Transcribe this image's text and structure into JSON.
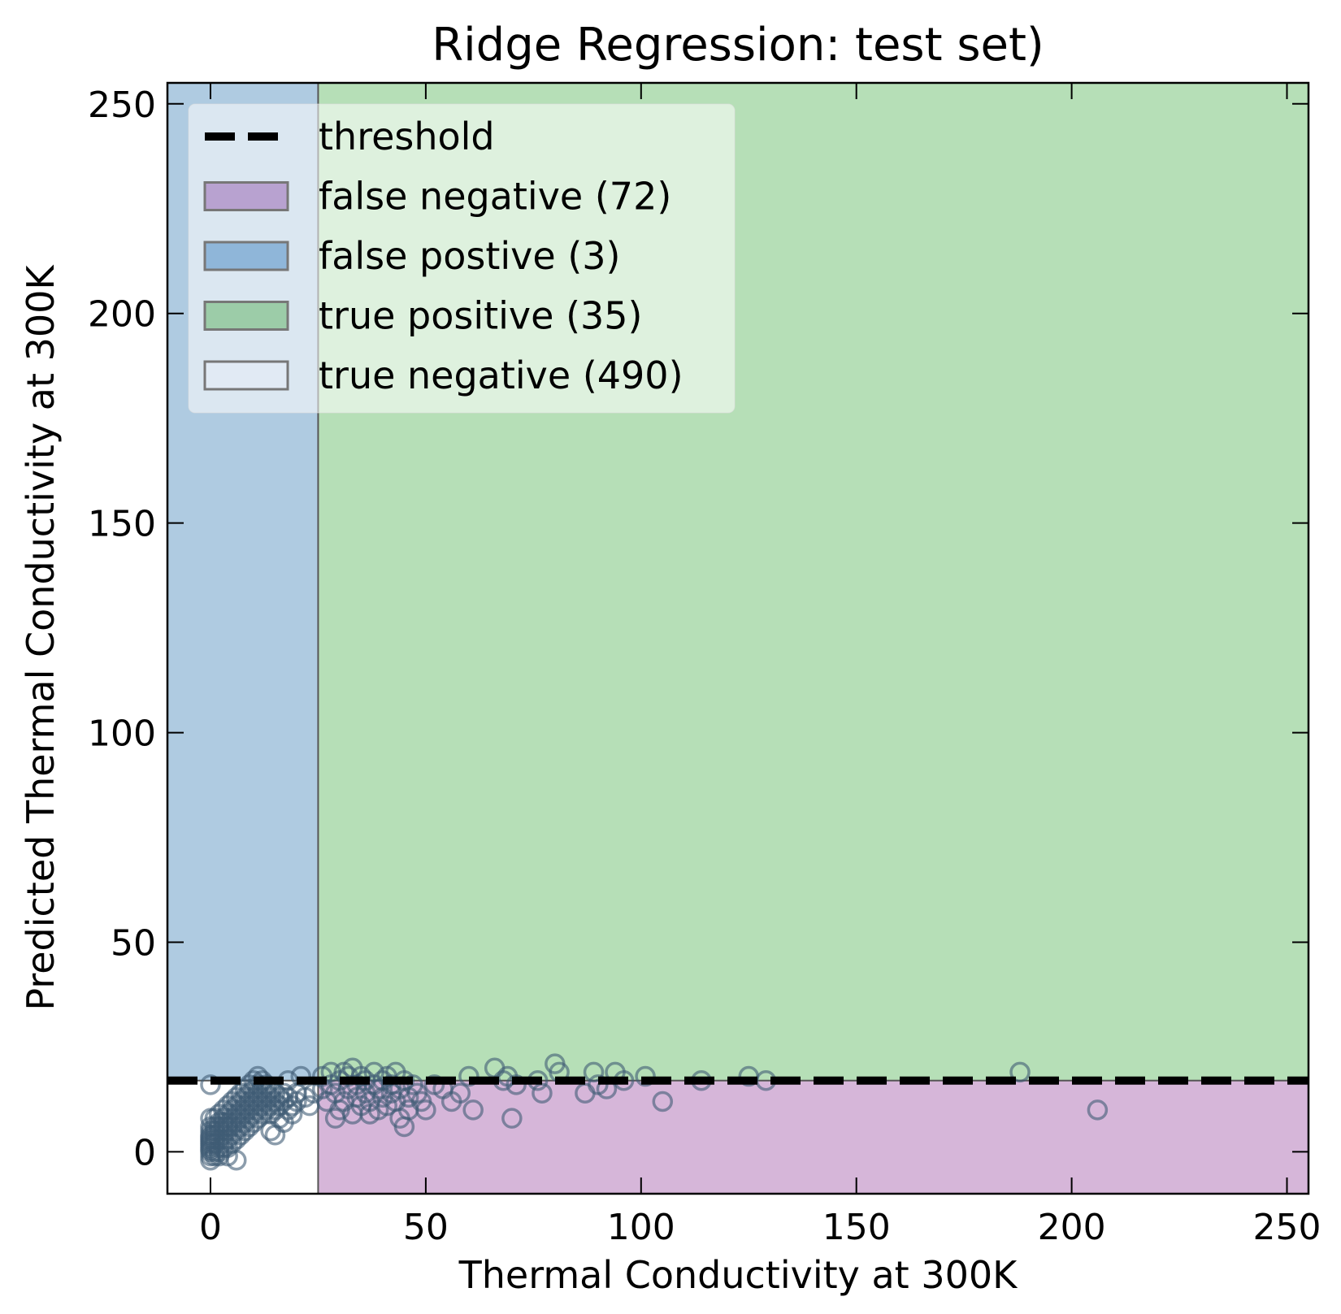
{
  "chart_data": {
    "type": "scatter",
    "title": "Ridge Regression: test set)",
    "xlabel": "Thermal Conductivity at 300K",
    "ylabel": "Predicted Thermal Conductivity at 300K",
    "xlim": [
      -10,
      255
    ],
    "ylim": [
      -10,
      255
    ],
    "xticks": [
      0,
      50,
      100,
      150,
      200,
      250
    ],
    "yticks": [
      0,
      50,
      100,
      150,
      200,
      250
    ],
    "threshold": {
      "x": 25,
      "y": 17
    },
    "legend_position": "upper-left",
    "legend": [
      {
        "label": "threshold",
        "type": "dashed-line",
        "color": "#000000"
      },
      {
        "label": "false negative (72)",
        "type": "patch",
        "color": "#b8a2d0"
      },
      {
        "label": "false postive (3)",
        "type": "patch",
        "color": "#8fb6d9"
      },
      {
        "label": "true positive (35)",
        "type": "patch",
        "color": "#9ccca8"
      },
      {
        "label": "true negative (490)",
        "type": "patch",
        "color": "#e1eaf4"
      }
    ],
    "regions": [
      {
        "name": "false-positive-region",
        "x": [
          -10,
          25
        ],
        "y": [
          17,
          255
        ],
        "color": "#afcbe1"
      },
      {
        "name": "true-positive-region",
        "x": [
          25,
          255
        ],
        "y": [
          17,
          255
        ],
        "color": "#b6dfb7"
      },
      {
        "name": "false-negative-region",
        "x": [
          25,
          255
        ],
        "y": [
          -10,
          17
        ],
        "color": "#d6b6d9"
      },
      {
        "name": "true-negative-region",
        "x": [
          -10,
          25
        ],
        "y": [
          -10,
          17
        ],
        "color": "#ffffff"
      }
    ],
    "marker_color": "#3f5c75",
    "series": [
      {
        "points": [
          [
            0,
            16
          ],
          [
            0,
            0
          ],
          [
            0,
            1
          ],
          [
            0,
            -1
          ],
          [
            0,
            2
          ],
          [
            0,
            3
          ],
          [
            0,
            4
          ],
          [
            0,
            5
          ],
          [
            0,
            6
          ],
          [
            0,
            8
          ],
          [
            0,
            -2
          ],
          [
            0,
            0.5
          ],
          [
            0,
            1.5
          ],
          [
            0,
            2.5
          ],
          [
            0,
            3.5
          ],
          [
            1,
            0
          ],
          [
            1,
            2
          ],
          [
            1,
            4
          ],
          [
            1,
            6
          ],
          [
            1,
            8
          ],
          [
            1,
            -1
          ],
          [
            1,
            3
          ],
          [
            1,
            5
          ],
          [
            2,
            1
          ],
          [
            2,
            3
          ],
          [
            2,
            5
          ],
          [
            2,
            7
          ],
          [
            2,
            9
          ],
          [
            2,
            0
          ],
          [
            2,
            -1
          ],
          [
            2,
            6
          ],
          [
            3,
            2
          ],
          [
            3,
            4
          ],
          [
            3,
            6
          ],
          [
            3,
            8
          ],
          [
            3,
            10
          ],
          [
            3,
            1
          ],
          [
            3,
            7
          ],
          [
            4,
            3
          ],
          [
            4,
            5
          ],
          [
            4,
            7
          ],
          [
            4,
            9
          ],
          [
            4,
            11
          ],
          [
            4,
            1
          ],
          [
            4,
            6
          ],
          [
            5,
            4
          ],
          [
            5,
            6
          ],
          [
            5,
            8
          ],
          [
            5,
            10
          ],
          [
            5,
            2
          ],
          [
            5,
            12
          ],
          [
            6,
            5
          ],
          [
            6,
            7
          ],
          [
            6,
            9
          ],
          [
            6,
            11
          ],
          [
            6,
            3
          ],
          [
            6,
            13
          ],
          [
            7,
            6
          ],
          [
            7,
            8
          ],
          [
            7,
            10
          ],
          [
            7,
            12
          ],
          [
            7,
            4
          ],
          [
            7,
            14
          ],
          [
            8,
            7
          ],
          [
            8,
            9
          ],
          [
            8,
            11
          ],
          [
            8,
            13
          ],
          [
            8,
            5
          ],
          [
            8,
            15
          ],
          [
            9,
            8
          ],
          [
            9,
            10
          ],
          [
            9,
            12
          ],
          [
            9,
            14
          ],
          [
            9,
            6
          ],
          [
            9,
            16
          ],
          [
            10,
            9
          ],
          [
            10,
            11
          ],
          [
            10,
            13
          ],
          [
            10,
            15
          ],
          [
            10,
            7
          ],
          [
            10,
            17
          ],
          [
            11,
            10
          ],
          [
            11,
            12
          ],
          [
            11,
            14
          ],
          [
            11,
            16
          ],
          [
            11,
            8
          ],
          [
            11,
            18
          ],
          [
            12,
            11
          ],
          [
            12,
            13
          ],
          [
            12,
            15
          ],
          [
            12,
            9
          ],
          [
            12,
            17
          ],
          [
            13,
            12
          ],
          [
            13,
            14
          ],
          [
            13,
            10
          ],
          [
            13,
            16
          ],
          [
            14,
            11
          ],
          [
            14,
            13
          ],
          [
            14,
            15
          ],
          [
            14,
            9
          ],
          [
            14,
            5
          ],
          [
            15,
            12
          ],
          [
            15,
            14
          ],
          [
            15,
            10
          ],
          [
            15,
            4
          ],
          [
            16,
            13
          ],
          [
            16,
            11
          ],
          [
            16,
            8
          ],
          [
            17,
            12
          ],
          [
            17,
            14
          ],
          [
            17,
            7
          ],
          [
            18,
            10
          ],
          [
            18,
            13
          ],
          [
            18,
            17
          ],
          [
            19,
            11
          ],
          [
            19,
            9
          ],
          [
            20,
            12
          ],
          [
            20,
            14
          ],
          [
            21,
            18
          ],
          [
            22,
            13
          ],
          [
            23,
            11
          ],
          [
            24,
            14
          ],
          [
            6,
            -2
          ],
          [
            4,
            -1
          ],
          [
            26,
            15
          ],
          [
            26,
            18
          ],
          [
            27,
            12
          ],
          [
            28,
            16
          ],
          [
            28,
            19
          ],
          [
            29,
            14
          ],
          [
            29,
            8
          ],
          [
            30,
            10
          ],
          [
            30,
            17
          ],
          [
            31,
            19
          ],
          [
            31,
            12
          ],
          [
            32,
            15
          ],
          [
            32,
            18
          ],
          [
            33,
            9
          ],
          [
            33,
            20
          ],
          [
            34,
            13
          ],
          [
            34,
            16
          ],
          [
            35,
            11
          ],
          [
            35,
            18
          ],
          [
            36,
            14
          ],
          [
            36,
            17
          ],
          [
            37,
            12
          ],
          [
            37,
            9
          ],
          [
            38,
            16
          ],
          [
            38,
            19
          ],
          [
            39,
            15
          ],
          [
            39,
            10
          ],
          [
            40,
            13
          ],
          [
            40,
            17
          ],
          [
            41,
            11
          ],
          [
            41,
            18
          ],
          [
            42,
            14
          ],
          [
            42,
            16
          ],
          [
            43,
            12
          ],
          [
            43,
            19
          ],
          [
            44,
            8
          ],
          [
            44,
            15
          ],
          [
            45,
            6
          ],
          [
            45,
            17
          ],
          [
            46,
            13
          ],
          [
            46,
            10
          ],
          [
            47,
            16
          ],
          [
            48,
            14
          ],
          [
            49,
            12
          ],
          [
            50,
            10
          ],
          [
            52,
            16
          ],
          [
            54,
            15
          ],
          [
            56,
            12
          ],
          [
            58,
            14
          ],
          [
            60,
            18
          ],
          [
            61,
            10
          ],
          [
            66,
            20
          ],
          [
            68,
            17
          ],
          [
            69,
            18
          ],
          [
            70,
            8
          ],
          [
            71,
            16
          ],
          [
            76,
            17
          ],
          [
            77,
            14
          ],
          [
            80,
            21
          ],
          [
            81,
            19
          ],
          [
            87,
            14
          ],
          [
            89,
            19
          ],
          [
            90,
            16
          ],
          [
            92,
            15
          ],
          [
            94,
            19
          ],
          [
            96,
            17
          ],
          [
            101,
            18
          ],
          [
            105,
            12
          ],
          [
            114,
            17
          ],
          [
            125,
            18
          ],
          [
            129,
            17
          ],
          [
            188,
            19
          ],
          [
            206,
            10
          ]
        ]
      }
    ]
  }
}
